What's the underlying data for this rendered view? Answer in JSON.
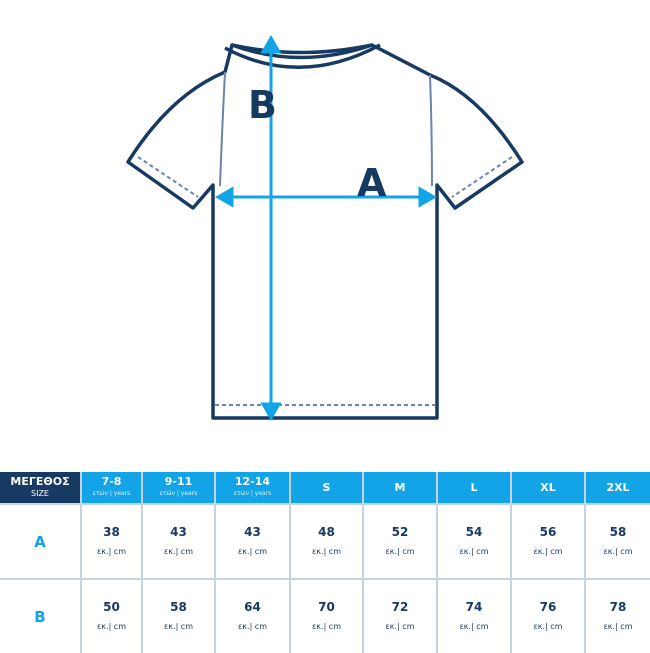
{
  "diagram": {
    "label_a": "A",
    "label_b": "B",
    "colors": {
      "outline": "#173a63",
      "arrow": "#12a4e6"
    }
  },
  "table": {
    "corner": {
      "title": "ΜΕΓΕΘΟΣ",
      "subtitle": "SIZE"
    },
    "columns": [
      {
        "size": "7-8",
        "sub": "ετών | years"
      },
      {
        "size": "9-11",
        "sub": "ετών | years"
      },
      {
        "size": "12-14",
        "sub": "ετών | years"
      },
      {
        "size": "S",
        "sub": ""
      },
      {
        "size": "M",
        "sub": ""
      },
      {
        "size": "L",
        "sub": ""
      },
      {
        "size": "XL",
        "sub": ""
      },
      {
        "size": "2XL",
        "sub": ""
      }
    ],
    "unit": "εκ.| cm",
    "rows": [
      {
        "label": "A",
        "values": [
          "38",
          "43",
          "43",
          "48",
          "52",
          "54",
          "56",
          "58"
        ]
      },
      {
        "label": "B",
        "values": [
          "50",
          "58",
          "64",
          "70",
          "72",
          "74",
          "76",
          "78"
        ]
      }
    ]
  }
}
